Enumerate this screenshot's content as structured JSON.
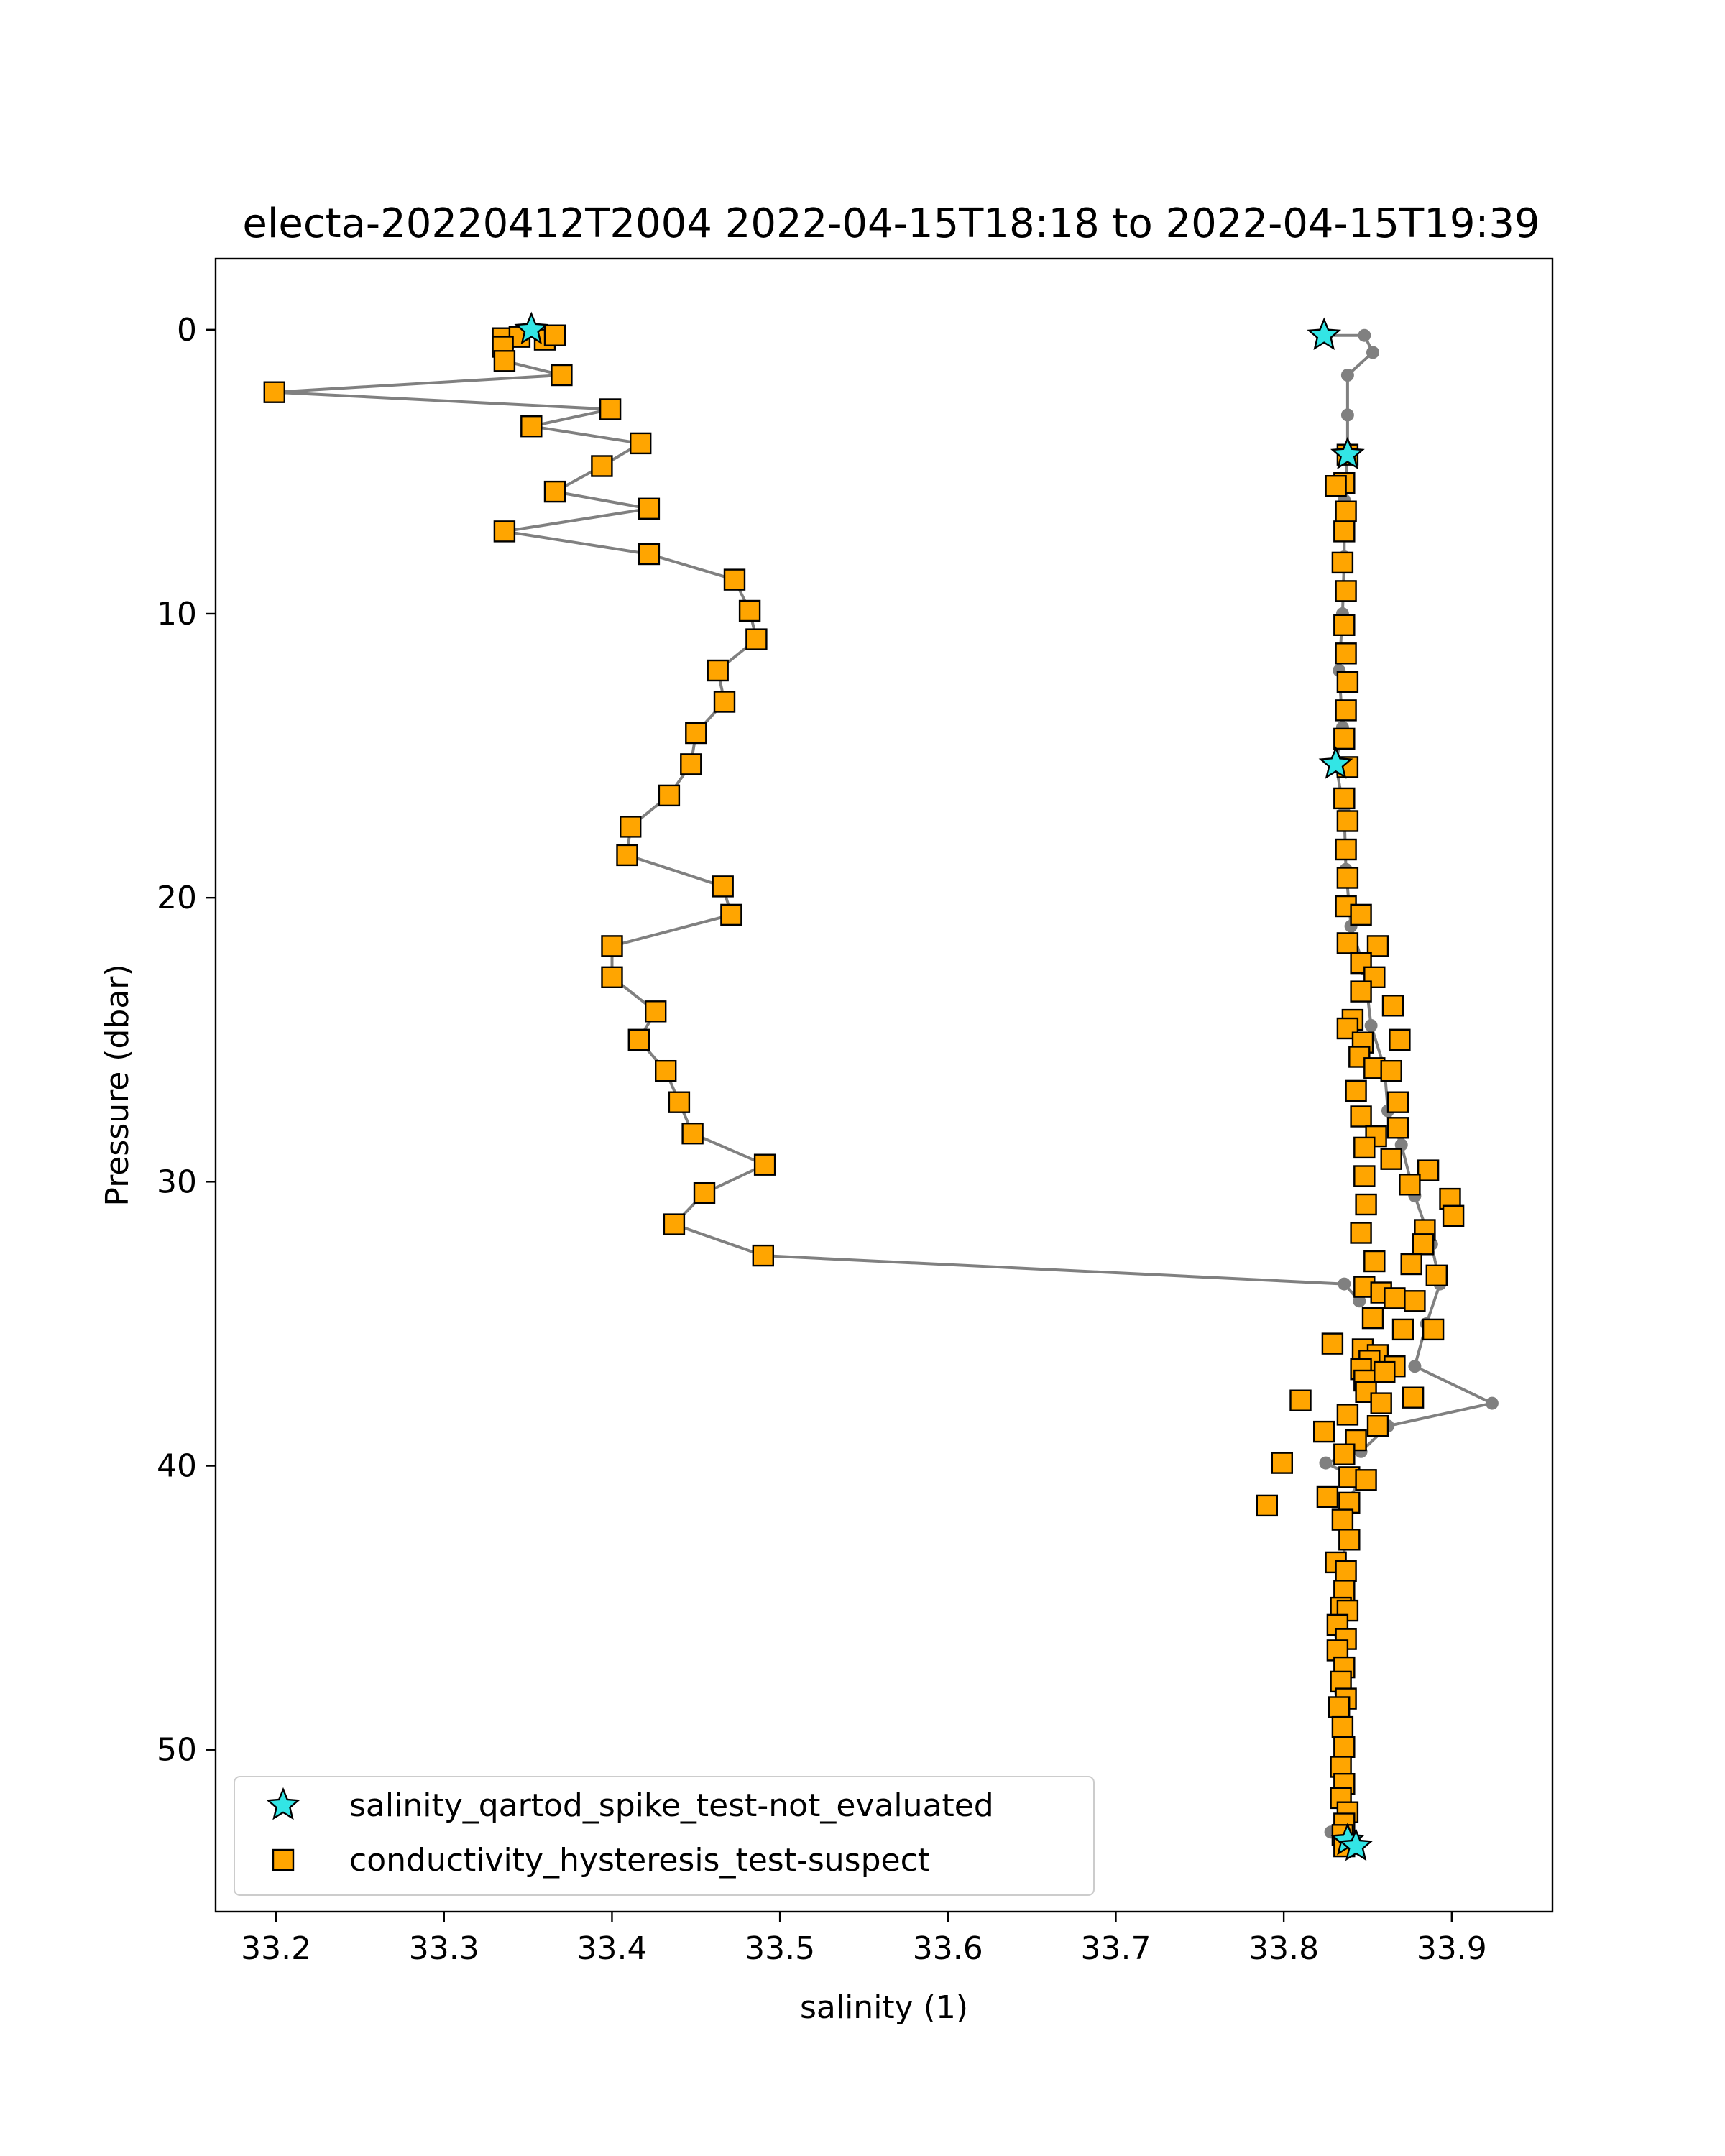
{
  "chart_data": {
    "type": "scatter",
    "title": "electa-20220412T2004 2022-04-15T18:18 to 2022-04-15T19:39",
    "xlabel": "salinity (1)",
    "ylabel": "Pressure (dbar)",
    "xlim": [
      33.164,
      33.96
    ],
    "ylim": [
      55.7,
      -2.5
    ],
    "y_inverted": true,
    "grid": false,
    "xticks": [
      33.2,
      33.3,
      33.4,
      33.5,
      33.6,
      33.7,
      33.8,
      33.9
    ],
    "yticks": [
      0,
      10,
      20,
      30,
      40,
      50
    ],
    "legend_position": "lower-left",
    "colors": {
      "line": "#808080",
      "marker_square": "#ffa500",
      "marker_star": "#33e5e5",
      "edge": "#000000"
    },
    "series": [
      {
        "role": "profile_line",
        "style": "grey line with small grey dots",
        "points": [
          [
            33.352,
            0.0
          ],
          [
            33.335,
            0.3
          ],
          [
            33.335,
            0.6
          ],
          [
            33.336,
            1.1
          ],
          [
            33.37,
            1.6
          ],
          [
            33.199,
            2.2
          ],
          [
            33.399,
            2.8
          ],
          [
            33.352,
            3.4
          ],
          [
            33.417,
            4.0
          ],
          [
            33.394,
            4.8
          ],
          [
            33.366,
            5.7
          ],
          [
            33.422,
            6.3
          ],
          [
            33.336,
            7.1
          ],
          [
            33.422,
            7.9
          ],
          [
            33.473,
            8.8
          ],
          [
            33.482,
            9.9
          ],
          [
            33.486,
            10.9
          ],
          [
            33.463,
            12.0
          ],
          [
            33.467,
            13.1
          ],
          [
            33.45,
            14.2
          ],
          [
            33.447,
            15.3
          ],
          [
            33.434,
            16.4
          ],
          [
            33.411,
            17.5
          ],
          [
            33.409,
            18.5
          ],
          [
            33.466,
            19.6
          ],
          [
            33.471,
            20.6
          ],
          [
            33.4,
            21.7
          ],
          [
            33.4,
            22.8
          ],
          [
            33.426,
            24.0
          ],
          [
            33.416,
            25.0
          ],
          [
            33.432,
            26.1
          ],
          [
            33.44,
            27.2
          ],
          [
            33.448,
            28.3
          ],
          [
            33.491,
            29.4
          ],
          [
            33.455,
            30.4
          ],
          [
            33.437,
            31.5
          ],
          [
            33.49,
            32.6
          ],
          [
            33.836,
            33.6
          ],
          [
            33.845,
            34.2
          ]
        ]
      },
      {
        "role": "profile_line",
        "style": "grey line with small grey dots",
        "points": [
          [
            33.824,
            0.2
          ],
          [
            33.848,
            0.2
          ],
          [
            33.853,
            0.8
          ],
          [
            33.838,
            1.6
          ],
          [
            33.838,
            3.0
          ],
          [
            33.838,
            4.4
          ],
          [
            33.836,
            6.0
          ],
          [
            33.836,
            8.0
          ],
          [
            33.835,
            10.0
          ],
          [
            33.833,
            12.0
          ],
          [
            33.835,
            14.0
          ],
          [
            33.831,
            15.3
          ],
          [
            33.836,
            17.0
          ],
          [
            33.837,
            19.0
          ],
          [
            33.84,
            21.0
          ],
          [
            33.848,
            22.5
          ],
          [
            33.852,
            24.5
          ],
          [
            33.86,
            26.0
          ],
          [
            33.862,
            27.5
          ],
          [
            33.87,
            28.7
          ],
          [
            33.878,
            30.5
          ],
          [
            33.888,
            32.2
          ],
          [
            33.893,
            33.6
          ],
          [
            33.885,
            35.0
          ],
          [
            33.878,
            36.5
          ],
          [
            33.924,
            37.8
          ],
          [
            33.862,
            38.6
          ],
          [
            33.846,
            39.5
          ],
          [
            33.825,
            39.9
          ],
          [
            33.846,
            40.5
          ],
          [
            33.837,
            41.3
          ],
          [
            33.836,
            42.0
          ],
          [
            33.836,
            44.0
          ],
          [
            33.834,
            46.0
          ],
          [
            33.834,
            48.0
          ],
          [
            33.834,
            50.0
          ],
          [
            33.835,
            52.0
          ],
          [
            33.828,
            52.9
          ],
          [
            33.838,
            53.2
          ]
        ]
      }
    ],
    "marker_series": [
      {
        "name": "salinity_qartod_spike_test-not_evaluated",
        "marker": "star",
        "points": [
          [
            33.352,
            0.0
          ],
          [
            33.824,
            0.2
          ],
          [
            33.838,
            4.4
          ],
          [
            33.831,
            15.3
          ],
          [
            33.838,
            53.2
          ],
          [
            33.843,
            53.4
          ]
        ]
      },
      {
        "name": "conductivity_hysteresis_test-suspect",
        "marker": "square",
        "points": [
          [
            33.335,
            0.3
          ],
          [
            33.345,
            0.25
          ],
          [
            33.36,
            0.35
          ],
          [
            33.366,
            0.2
          ],
          [
            33.335,
            0.6
          ],
          [
            33.336,
            1.1
          ],
          [
            33.37,
            1.6
          ],
          [
            33.199,
            2.2
          ],
          [
            33.399,
            2.8
          ],
          [
            33.352,
            3.4
          ],
          [
            33.417,
            4.0
          ],
          [
            33.394,
            4.8
          ],
          [
            33.366,
            5.7
          ],
          [
            33.422,
            6.3
          ],
          [
            33.336,
            7.1
          ],
          [
            33.422,
            7.9
          ],
          [
            33.473,
            8.8
          ],
          [
            33.482,
            9.9
          ],
          [
            33.486,
            10.9
          ],
          [
            33.463,
            12.0
          ],
          [
            33.467,
            13.1
          ],
          [
            33.45,
            14.2
          ],
          [
            33.447,
            15.3
          ],
          [
            33.434,
            16.4
          ],
          [
            33.411,
            17.5
          ],
          [
            33.409,
            18.5
          ],
          [
            33.466,
            19.6
          ],
          [
            33.471,
            20.6
          ],
          [
            33.4,
            21.7
          ],
          [
            33.4,
            22.8
          ],
          [
            33.426,
            24.0
          ],
          [
            33.416,
            25.0
          ],
          [
            33.432,
            26.1
          ],
          [
            33.44,
            27.2
          ],
          [
            33.448,
            28.3
          ],
          [
            33.491,
            29.4
          ],
          [
            33.455,
            30.4
          ],
          [
            33.437,
            31.5
          ],
          [
            33.49,
            32.6
          ],
          [
            33.838,
            4.4
          ],
          [
            33.836,
            5.4
          ],
          [
            33.831,
            5.5
          ],
          [
            33.837,
            6.4
          ],
          [
            33.836,
            7.1
          ],
          [
            33.835,
            8.2
          ],
          [
            33.837,
            9.2
          ],
          [
            33.836,
            10.4
          ],
          [
            33.837,
            11.4
          ],
          [
            33.838,
            12.4
          ],
          [
            33.837,
            13.4
          ],
          [
            33.836,
            14.4
          ],
          [
            33.838,
            15.4
          ],
          [
            33.836,
            16.5
          ],
          [
            33.838,
            17.3
          ],
          [
            33.837,
            18.3
          ],
          [
            33.838,
            19.3
          ],
          [
            33.837,
            20.3
          ],
          [
            33.846,
            20.6
          ],
          [
            33.838,
            21.6
          ],
          [
            33.856,
            21.7
          ],
          [
            33.846,
            22.3
          ],
          [
            33.854,
            22.8
          ],
          [
            33.846,
            23.3
          ],
          [
            33.865,
            23.8
          ],
          [
            33.841,
            24.3
          ],
          [
            33.838,
            24.6
          ],
          [
            33.847,
            25.1
          ],
          [
            33.869,
            25.0
          ],
          [
            33.845,
            25.6
          ],
          [
            33.854,
            26.0
          ],
          [
            33.864,
            26.1
          ],
          [
            33.843,
            26.8
          ],
          [
            33.868,
            27.2
          ],
          [
            33.846,
            27.7
          ],
          [
            33.868,
            28.1
          ],
          [
            33.855,
            28.4
          ],
          [
            33.848,
            28.8
          ],
          [
            33.864,
            29.2
          ],
          [
            33.886,
            29.6
          ],
          [
            33.848,
            29.8
          ],
          [
            33.875,
            30.1
          ],
          [
            33.899,
            30.6
          ],
          [
            33.849,
            30.8
          ],
          [
            33.901,
            31.2
          ],
          [
            33.884,
            31.7
          ],
          [
            33.846,
            31.8
          ],
          [
            33.883,
            32.2
          ],
          [
            33.876,
            32.9
          ],
          [
            33.854,
            32.8
          ],
          [
            33.891,
            33.3
          ],
          [
            33.848,
            33.7
          ],
          [
            33.858,
            33.9
          ],
          [
            33.866,
            34.1
          ],
          [
            33.878,
            34.2
          ],
          [
            33.853,
            34.8
          ],
          [
            33.889,
            35.2
          ],
          [
            33.871,
            35.2
          ],
          [
            33.829,
            35.7
          ],
          [
            33.847,
            35.9
          ],
          [
            33.856,
            36.1
          ],
          [
            33.866,
            36.5
          ],
          [
            33.851,
            36.3
          ],
          [
            33.846,
            36.6
          ],
          [
            33.86,
            36.7
          ],
          [
            33.848,
            37.0
          ],
          [
            33.849,
            37.4
          ],
          [
            33.877,
            37.6
          ],
          [
            33.858,
            37.8
          ],
          [
            33.81,
            37.7
          ],
          [
            33.838,
            38.2
          ],
          [
            33.824,
            38.8
          ],
          [
            33.856,
            38.6
          ],
          [
            33.843,
            39.1
          ],
          [
            33.836,
            39.6
          ],
          [
            33.799,
            39.9
          ],
          [
            33.839,
            40.4
          ],
          [
            33.849,
            40.5
          ],
          [
            33.826,
            41.1
          ],
          [
            33.839,
            41.3
          ],
          [
            33.79,
            41.4
          ],
          [
            33.835,
            41.9
          ],
          [
            33.839,
            42.6
          ],
          [
            33.831,
            43.4
          ],
          [
            33.837,
            43.7
          ],
          [
            33.836,
            44.4
          ],
          [
            33.834,
            45.0
          ],
          [
            33.838,
            45.1
          ],
          [
            33.832,
            45.6
          ],
          [
            33.837,
            46.1
          ],
          [
            33.832,
            46.5
          ],
          [
            33.836,
            47.1
          ],
          [
            33.834,
            47.6
          ],
          [
            33.837,
            48.2
          ],
          [
            33.833,
            48.5
          ],
          [
            33.835,
            49.2
          ],
          [
            33.836,
            49.9
          ],
          [
            33.834,
            50.6
          ],
          [
            33.836,
            51.2
          ],
          [
            33.834,
            51.7
          ],
          [
            33.838,
            52.2
          ],
          [
            33.836,
            52.6
          ],
          [
            33.835,
            53.0
          ],
          [
            33.836,
            53.4
          ]
        ]
      }
    ]
  }
}
